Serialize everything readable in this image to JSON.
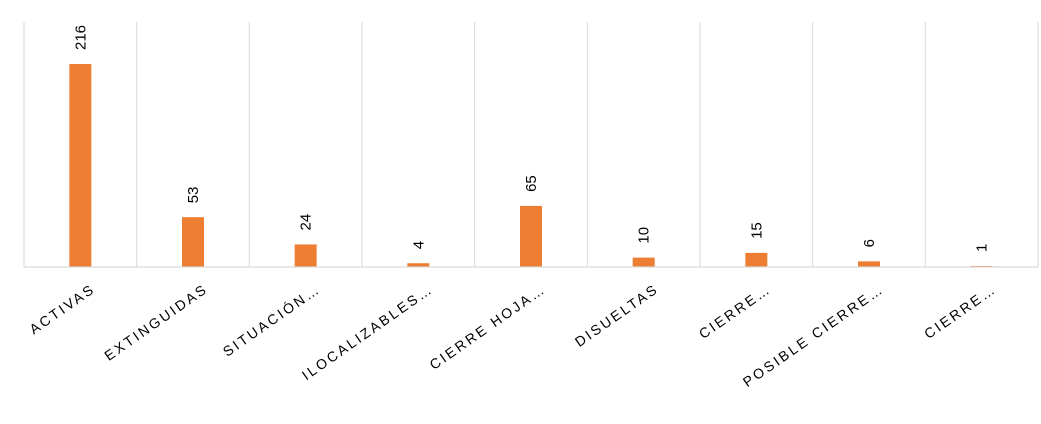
{
  "chart_data": {
    "type": "bar",
    "categories": [
      "ACTIVAS",
      "EXTINGUIDAS",
      "SITUACIÓN…",
      "ILOCALIZABLES…",
      "CIERRE HOJA…",
      "DISUELTAS",
      "CIERRE…",
      "POSIBLE CIERRE…",
      "CIERRE…"
    ],
    "values": [
      216,
      53,
      24,
      4,
      65,
      10,
      15,
      6,
      1
    ],
    "ylim": [
      0,
      230
    ],
    "grid": "vertical separators",
    "legend": "none",
    "data_labels": true
  },
  "colors": {
    "bar": "#ED7D31",
    "grid": "#D9D9D9",
    "axis": "#D9D9D9",
    "text": "#000000"
  }
}
